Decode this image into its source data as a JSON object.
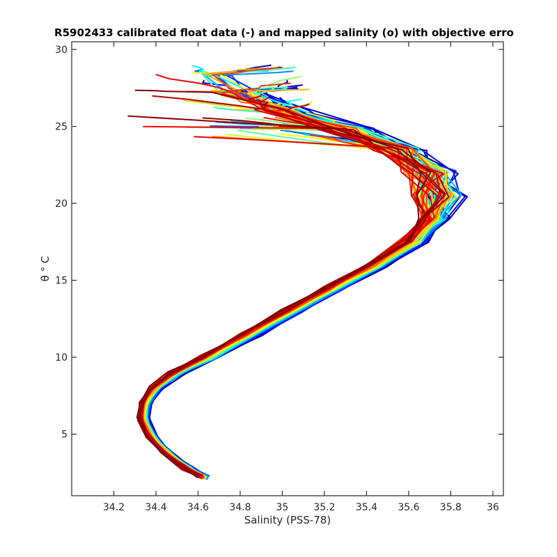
{
  "chart_data": {
    "type": "line",
    "title": "R5902433 calibrated float data (-) and mapped salinity (o) with objective erro",
    "xlabel": "Salinity (PSS-78)",
    "ylabel": "θ ° C",
    "xlim": [
      34.0,
      36.05
    ],
    "ylim": [
      1.0,
      30.5
    ],
    "xticks": [
      "34.2",
      "34.4",
      "34.6",
      "34.8",
      "35",
      "35.2",
      "35.4",
      "35.6",
      "35.8",
      "36"
    ],
    "yticks": [
      "5",
      "10",
      "15",
      "20",
      "25",
      "30"
    ],
    "grid": false,
    "legend": "none",
    "colormap": "jet",
    "profile_count": 80,
    "reference_profile": {
      "x": [
        34.63,
        34.55,
        34.45,
        34.38,
        34.34,
        34.35,
        34.4,
        34.5,
        34.65,
        34.85,
        35.05,
        35.25,
        35.45,
        35.62,
        35.72,
        35.74,
        35.7,
        35.55,
        35.3,
        35.0,
        34.8,
        34.65
      ],
      "y": [
        2.2,
        2.8,
        3.8,
        4.8,
        6.0,
        7.0,
        8.0,
        9.0,
        10.0,
        11.5,
        13.0,
        14.5,
        16.0,
        17.5,
        19.0,
        20.5,
        22.0,
        23.5,
        24.8,
        26.0,
        27.2,
        28.4
      ]
    }
  }
}
